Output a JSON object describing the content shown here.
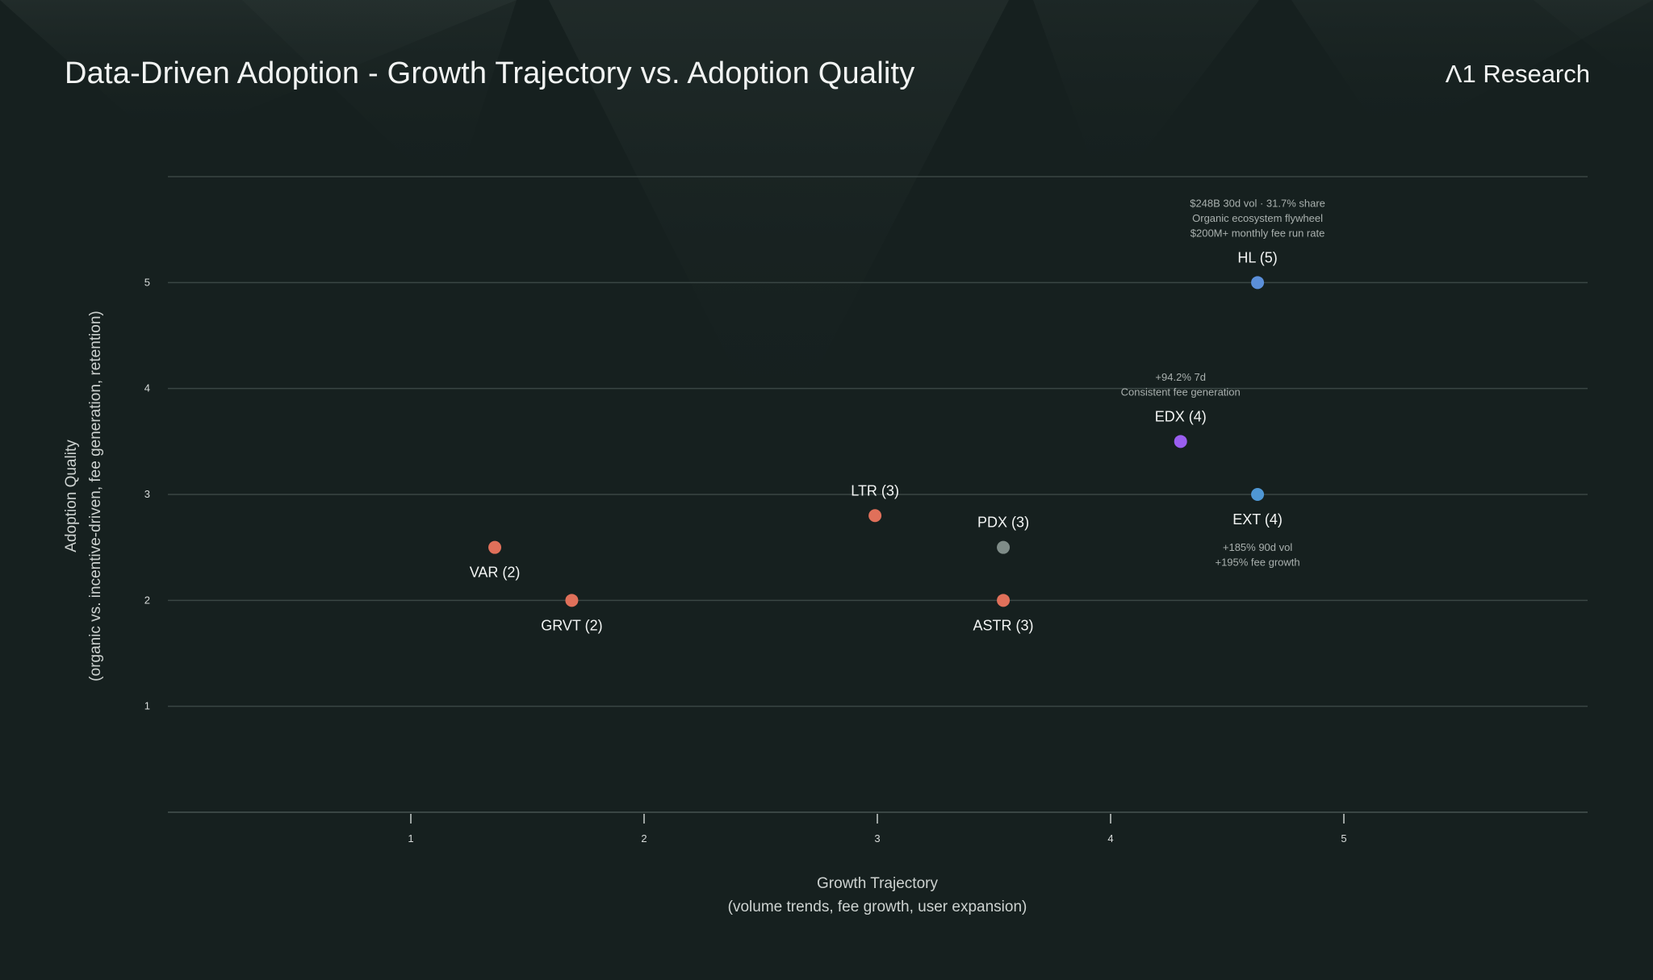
{
  "header": {
    "title": "Data-Driven Adoption - Growth Trajectory vs. Adoption Quality",
    "brand": "Λ1 Research"
  },
  "chart_data": {
    "type": "scatter",
    "title": "Data-Driven Adoption - Growth Trajectory vs. Adoption Quality",
    "xlabel": "Growth Trajectory",
    "xlabel_sub": "(volume trends, fee growth, user expansion)",
    "ylabel": "Adoption Quality",
    "ylabel_sub": "(organic vs. incentive-driven, fee generation, retention)",
    "xlim": [
      0,
      6.85
    ],
    "ylim": [
      0,
      6
    ],
    "xticks": [
      1,
      2,
      3,
      4,
      5
    ],
    "yticks": [
      1,
      2,
      3,
      4,
      5
    ],
    "grid": true,
    "legend": "none",
    "points": [
      {
        "label": "HL (5)",
        "x": 4.63,
        "y": 5.0,
        "color": "#5b8fd9",
        "label_pos": "above",
        "annotation": [
          "$248B 30d vol · 31.7% share",
          "Organic ecosystem flywheel",
          "$200M+ monthly fee run rate"
        ],
        "annotation_pos": "above"
      },
      {
        "label": "EDX (4)",
        "x": 4.3,
        "y": 3.5,
        "color": "#9a5ef0",
        "label_pos": "above",
        "annotation": [
          "+94.2% 7d",
          "Consistent fee generation"
        ],
        "annotation_pos": "above"
      },
      {
        "label": "EXT (4)",
        "x": 4.63,
        "y": 3.0,
        "color": "#4f97d4",
        "label_pos": "below",
        "annotation": [
          "+185% 90d vol",
          "+195% fee growth"
        ],
        "annotation_pos": "below"
      },
      {
        "label": "LTR (3)",
        "x": 2.99,
        "y": 2.8,
        "color": "#e0705a",
        "label_pos": "above",
        "annotation": []
      },
      {
        "label": "PDX (3)",
        "x": 3.54,
        "y": 2.5,
        "color": "#7f8c88",
        "label_pos": "above",
        "annotation": []
      },
      {
        "label": "ASTR (3)",
        "x": 3.54,
        "y": 2.0,
        "color": "#e0705a",
        "label_pos": "below",
        "annotation": []
      },
      {
        "label": "VAR (2)",
        "x": 1.36,
        "y": 2.5,
        "color": "#e0705a",
        "label_pos": "below",
        "annotation": []
      },
      {
        "label": "GRVT (2)",
        "x": 1.69,
        "y": 2.0,
        "color": "#e0705a",
        "label_pos": "below",
        "annotation": []
      }
    ]
  },
  "colors": {
    "background": "#16201f",
    "grid": "#3a4644",
    "text": "#f2f4f3"
  }
}
